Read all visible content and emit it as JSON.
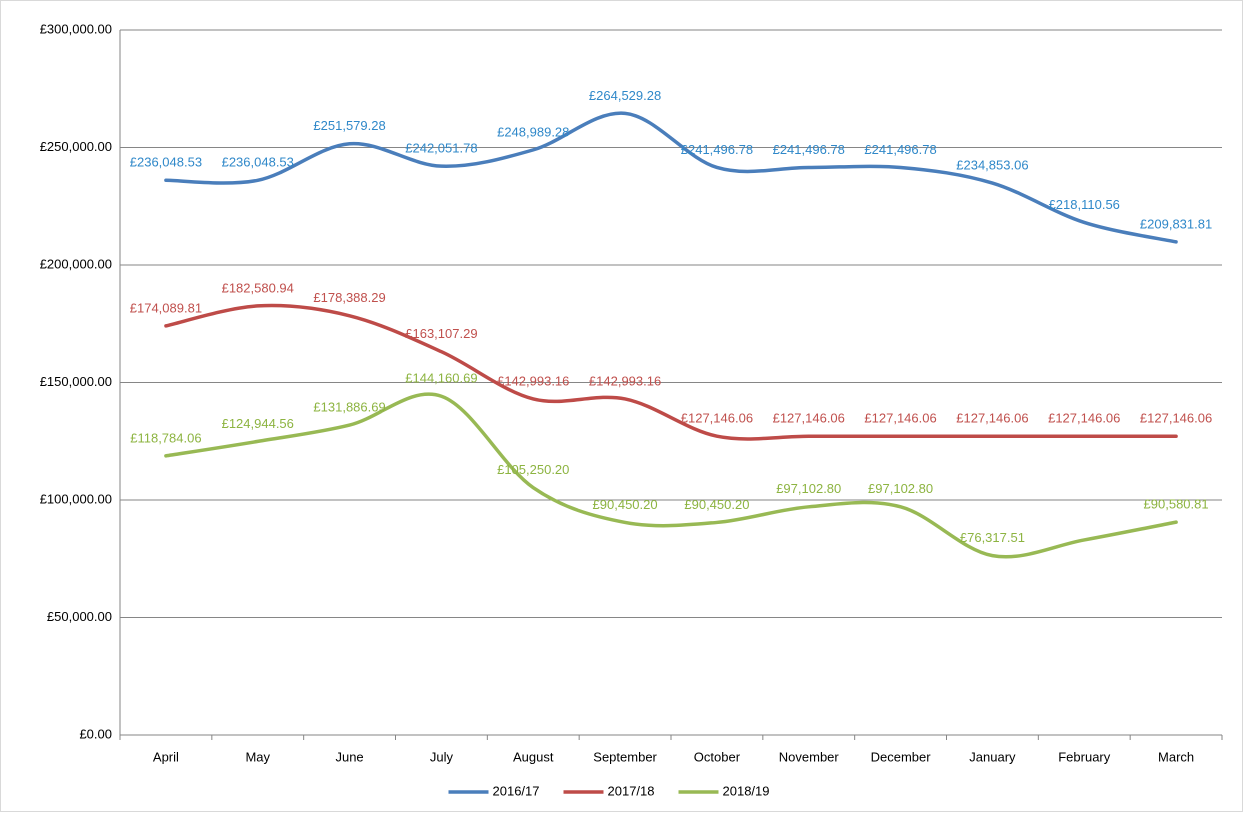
{
  "chart_data": {
    "type": "line",
    "smooth": true,
    "grid": true,
    "legend": "bottom",
    "categories": [
      "April",
      "May",
      "June",
      "July",
      "August",
      "September",
      "October",
      "November",
      "December",
      "January",
      "February",
      "March"
    ],
    "ylim": [
      0,
      300000
    ],
    "yticks": [
      {
        "value": 0,
        "label": "£0.00"
      },
      {
        "value": 50000,
        "label": "£50,000.00"
      },
      {
        "value": 100000,
        "label": "£100,000.00"
      },
      {
        "value": 150000,
        "label": "£150,000.00"
      },
      {
        "value": 200000,
        "label": "£200,000.00"
      },
      {
        "value": 250000,
        "label": "£250,000.00"
      },
      {
        "value": 300000,
        "label": "£300,000.00"
      }
    ],
    "series": [
      {
        "name": "2016/17",
        "color": "#4a7ebb",
        "label_color": "#2f88c9",
        "values": [
          236048.53,
          236048.53,
          251579.28,
          242051.78,
          248989.28,
          264529.28,
          241496.78,
          241496.78,
          241496.78,
          234853.06,
          218110.56,
          209831.81
        ],
        "value_labels": [
          "£236,048.53",
          "£236,048.53",
          "£251,579.28",
          "£242,051.78",
          "£248,989.28",
          "£264,529.28",
          "£241,496.78",
          "£241,496.78",
          "£241,496.78",
          "£234,853.06",
          "£218,110.56",
          "£209,831.81"
        ]
      },
      {
        "name": "2017/18",
        "color": "#be4b48",
        "label_color": "#c0504d",
        "values": [
          174089.81,
          182580.94,
          178388.29,
          163107.29,
          142993.16,
          142993.16,
          127146.06,
          127146.06,
          127146.06,
          127146.06,
          127146.06,
          127146.06
        ],
        "value_labels": [
          "£174,089.81",
          "£182,580.94",
          "£178,388.29",
          "£163,107.29",
          "£142,993.16",
          "£142,993.16",
          "£127,146.06",
          "£127,146.06",
          "£127,146.06",
          "£127,146.06",
          "£127,146.06",
          "£127,146.06"
        ]
      },
      {
        "name": "2018/19",
        "color": "#98b954",
        "label_color": "#8db441",
        "values": [
          118784.06,
          124944.56,
          131886.69,
          144160.69,
          105250.2,
          90450.2,
          90450.2,
          97102.8,
          97102.8,
          76317.51,
          83000,
          90580.81
        ],
        "value_labels": [
          "£118,784.06",
          "£124,944.56",
          "£131,886.69",
          "£144,160.69",
          "£105,250.20",
          "£90,450.20",
          "£90,450.20",
          "£97,102.80",
          "£97,102.80",
          "£76,317.51",
          null,
          "£90,580.81"
        ]
      }
    ]
  }
}
